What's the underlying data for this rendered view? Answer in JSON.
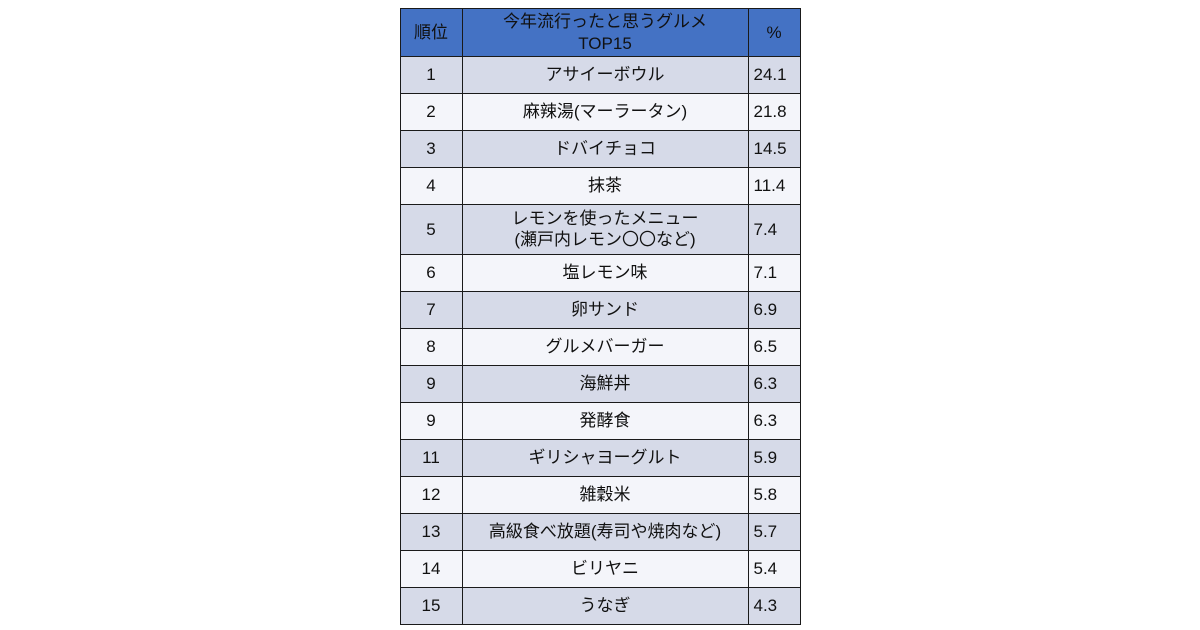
{
  "table": {
    "headers": {
      "rank": "順位",
      "item": "今年流行ったと思うグルメ\nTOP15",
      "pct": "%"
    },
    "rows": [
      {
        "rank": "1",
        "item": "アサイーボウル",
        "pct": "24.1"
      },
      {
        "rank": "2",
        "item": "麻辣湯(マーラータン)",
        "pct": "21.8"
      },
      {
        "rank": "3",
        "item": "ドバイチョコ",
        "pct": "14.5"
      },
      {
        "rank": "4",
        "item": "抹茶",
        "pct": "11.4"
      },
      {
        "rank": "5",
        "item": "レモンを使ったメニュー\n(瀬戸内レモン〇〇など)",
        "pct": "7.4"
      },
      {
        "rank": "6",
        "item": "塩レモン味",
        "pct": "7.1"
      },
      {
        "rank": "7",
        "item": "卵サンド",
        "pct": "6.9"
      },
      {
        "rank": "8",
        "item": "グルメバーガー",
        "pct": "6.5"
      },
      {
        "rank": "9",
        "item": "海鮮丼",
        "pct": "6.3"
      },
      {
        "rank": "9",
        "item": "発酵食",
        "pct": "6.3"
      },
      {
        "rank": "11",
        "item": "ギリシャヨーグルト",
        "pct": "5.9"
      },
      {
        "rank": "12",
        "item": "雑穀米",
        "pct": "5.8"
      },
      {
        "rank": "13",
        "item": "高級食べ放題(寿司や焼肉など)",
        "pct": "5.7"
      },
      {
        "rank": "14",
        "item": "ビリヤニ",
        "pct": "5.4"
      },
      {
        "rank": "15",
        "item": "うなぎ",
        "pct": "4.3"
      }
    ]
  },
  "colors": {
    "header_bg": "#4472C4",
    "header_text": "#FFFFFF",
    "band_dark": "#D6DAE8",
    "band_light": "#F4F5FA",
    "border": "#1A1A1A"
  },
  "chart_data": {
    "type": "table",
    "title": "今年流行ったと思うグルメ TOP15",
    "columns": [
      "順位",
      "今年流行ったと思うグルメ TOP15",
      "%"
    ],
    "ranks": [
      1,
      2,
      3,
      4,
      5,
      6,
      7,
      8,
      9,
      9,
      11,
      12,
      13,
      14,
      15
    ],
    "categories": [
      "アサイーボウル",
      "麻辣湯(マーラータン)",
      "ドバイチョコ",
      "抹茶",
      "レモンを使ったメニュー(瀬戸内レモン〇〇など)",
      "塩レモン味",
      "卵サンド",
      "グルメバーガー",
      "海鮮丼",
      "発酵食",
      "ギリシャヨーグルト",
      "雑穀米",
      "高級食べ放題(寿司や焼肉など)",
      "ビリヤニ",
      "うなぎ"
    ],
    "values": [
      24.1,
      21.8,
      14.5,
      11.4,
      7.4,
      7.1,
      6.9,
      6.5,
      6.3,
      6.3,
      5.9,
      5.8,
      5.7,
      5.4,
      4.3
    ],
    "value_unit": "%"
  }
}
